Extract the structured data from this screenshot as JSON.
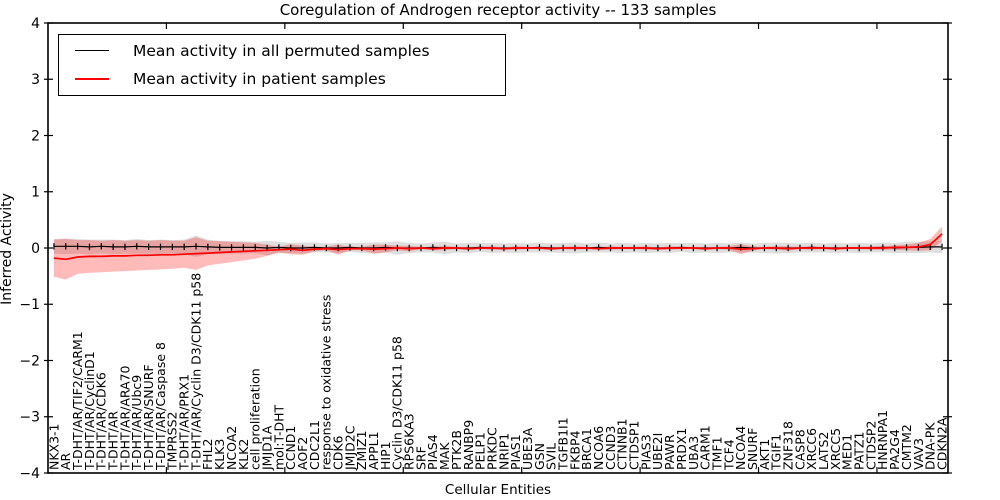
{
  "chart_data": {
    "type": "line",
    "title": "Coregulation of Androgen receptor activity -- 133 samples",
    "xlabel": "Cellular Entities",
    "ylabel": "Inferred Activity",
    "ylim": [
      -4,
      4
    ],
    "yticks": [
      "4",
      "3",
      "2",
      "1",
      "0",
      "−1",
      "−2",
      "−3",
      "−4"
    ],
    "ytick_values": [
      4,
      3,
      2,
      1,
      0,
      -1,
      -2,
      -3,
      -4
    ],
    "grid": false,
    "legend_position": "upper left",
    "colors": {
      "permuted_line": "#000000",
      "patient_line": "#ff0000",
      "permuted_band": "rgba(0,0,0,0.13)",
      "patient_band": "rgba(255,0,0,0.27)"
    },
    "categories": [
      "NKX3-1",
      "AR",
      "T-DHT/AR/TIF2/CARM1",
      "T-DHT/AR/CyclinD1",
      "T-DHT/AR/CDK6",
      "T-DHT/AR",
      "T-DHT/AR/ARA70",
      "T-DHT/AR/Ubc9",
      "T-DHT/AR/SNURF",
      "T-DHT/AR/Caspase 8",
      "TMPRSS2",
      "T-DHT/AR/PRX1",
      "T-DHT/AR/Cyclin D3/CDK11 p58",
      "FHL2",
      "KLK3",
      "NCOA2",
      "KLK2",
      "cell proliferation",
      "JMJD1A",
      "mol:T-DHT",
      "CCND1",
      "AOF2",
      "CDC2L1",
      "response to oxidative stress",
      "CDK6",
      "JMJD2C",
      "ZMIZ1",
      "APPL1",
      "HIP1",
      "Cyclin D3/CDK11 p58",
      "RPS6KA3",
      "SRF",
      "PIAS4",
      "MAK",
      "PTK2B",
      "RANBP9",
      "PELP1",
      "PRKDC",
      "NRIP1",
      "PIAS1",
      "UBE3A",
      "GSN",
      "SVIL",
      "TGFB1I1",
      "FKBP4",
      "BRCA1",
      "NCOA6",
      "CCND3",
      "CTNNB1",
      "CTDSP1",
      "PIAS3",
      "UBE2I",
      "PAWR",
      "PRDX1",
      "UBA3",
      "CARM1",
      "TMF1",
      "TCF4",
      "NCOA4",
      "SNURF",
      "AKT1",
      "TGIF1",
      "ZNF318",
      "CASP8",
      "XRCC6",
      "LATS2",
      "XRCC5",
      "MED1",
      "PATZ1",
      "CTDSP2",
      "HNRNPA1",
      "PA2G4",
      "CMTM2",
      "VAV3",
      "DNA-PK",
      "CDKN2A"
    ],
    "series": [
      {
        "name": "Mean activity in all permuted samples",
        "color": "#000000",
        "values": [
          0.03,
          0.03,
          0.03,
          0.02,
          0.03,
          0.02,
          0.02,
          0.03,
          0.02,
          0.02,
          0.02,
          0.02,
          0.03,
          0.02,
          0.01,
          0.01,
          0.01,
          0.01,
          0.0,
          0.01,
          0.0,
          0.0,
          0.01,
          0.0,
          0.0,
          0.01,
          0.0,
          0.0,
          0.01,
          0.0,
          0.0,
          0.0,
          0.01,
          0.0,
          0.0,
          0.0,
          0.01,
          0.0,
          0.0,
          0.0,
          0.0,
          0.01,
          0.0,
          0.0,
          0.0,
          0.0,
          0.01,
          0.0,
          0.0,
          0.0,
          0.0,
          0.0,
          0.0,
          0.01,
          0.0,
          0.0,
          0.0,
          0.0,
          0.01,
          0.0,
          0.0,
          0.0,
          0.0,
          0.0,
          0.01,
          0.0,
          0.0,
          0.0,
          0.0,
          0.0,
          0.01,
          0.0,
          0.01,
          0.01,
          0.02,
          0.02
        ],
        "std": [
          0.13,
          0.14,
          0.13,
          0.13,
          0.12,
          0.13,
          0.12,
          0.13,
          0.12,
          0.13,
          0.12,
          0.13,
          0.19,
          0.13,
          0.12,
          0.11,
          0.11,
          0.1,
          0.13,
          0.1,
          0.09,
          0.1,
          0.09,
          0.08,
          0.09,
          0.08,
          0.09,
          0.1,
          0.09,
          0.12,
          0.09,
          0.08,
          0.09,
          0.11,
          0.08,
          0.09,
          0.08,
          0.09,
          0.08,
          0.09,
          0.08,
          0.09,
          0.08,
          0.09,
          0.1,
          0.08,
          0.09,
          0.08,
          0.09,
          0.08,
          0.09,
          0.08,
          0.09,
          0.08,
          0.09,
          0.08,
          0.09,
          0.08,
          0.09,
          0.08,
          0.09,
          0.1,
          0.09,
          0.08,
          0.09,
          0.08,
          0.09,
          0.08,
          0.09,
          0.08,
          0.09,
          0.09,
          0.1,
          0.1,
          0.1,
          0.11
        ]
      },
      {
        "name": "Mean activity in patient samples",
        "color": "#ff0000",
        "values": [
          -0.18,
          -0.2,
          -0.16,
          -0.15,
          -0.15,
          -0.14,
          -0.14,
          -0.13,
          -0.13,
          -0.12,
          -0.12,
          -0.11,
          -0.1,
          -0.09,
          -0.08,
          -0.07,
          -0.06,
          -0.05,
          -0.04,
          -0.03,
          -0.02,
          -0.04,
          -0.02,
          -0.01,
          -0.03,
          -0.01,
          -0.01,
          -0.02,
          -0.01,
          0.0,
          -0.01,
          0.0,
          -0.01,
          0.0,
          0.0,
          -0.01,
          0.0,
          0.0,
          -0.01,
          0.0,
          0.0,
          0.0,
          -0.01,
          0.0,
          0.0,
          0.0,
          -0.01,
          0.0,
          0.0,
          0.0,
          0.0,
          -0.01,
          0.0,
          0.0,
          0.0,
          -0.01,
          0.0,
          0.0,
          -0.02,
          -0.01,
          0.0,
          0.0,
          -0.01,
          0.0,
          0.0,
          0.0,
          -0.01,
          0.0,
          0.0,
          0.0,
          0.0,
          0.01,
          0.01,
          0.02,
          0.06,
          0.25
        ],
        "std": [
          0.33,
          0.36,
          0.3,
          0.29,
          0.28,
          0.28,
          0.27,
          0.27,
          0.26,
          0.26,
          0.25,
          0.24,
          0.29,
          0.22,
          0.2,
          0.18,
          0.16,
          0.14,
          0.1,
          0.05,
          0.09,
          0.08,
          0.04,
          0.03,
          0.09,
          0.03,
          0.03,
          0.08,
          0.07,
          0.04,
          0.05,
          0.02,
          0.03,
          0.04,
          0.02,
          0.03,
          0.02,
          0.03,
          0.02,
          0.03,
          0.02,
          0.02,
          0.03,
          0.02,
          0.03,
          0.02,
          0.02,
          0.03,
          0.02,
          0.02,
          0.03,
          0.02,
          0.03,
          0.02,
          0.02,
          0.03,
          0.02,
          0.03,
          0.09,
          0.04,
          0.02,
          0.03,
          0.04,
          0.02,
          0.03,
          0.02,
          0.03,
          0.02,
          0.02,
          0.03,
          0.03,
          0.04,
          0.05,
          0.07,
          0.1,
          0.13
        ]
      }
    ]
  },
  "legend": {
    "items": [
      {
        "label": "Mean activity in all permuted samples"
      },
      {
        "label": "Mean activity in patient samples"
      }
    ]
  }
}
